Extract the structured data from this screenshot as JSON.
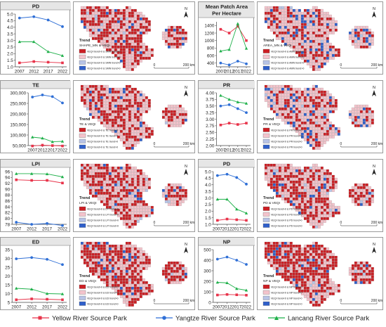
{
  "chart_data": [
    {
      "type": "line",
      "title": "PD",
      "categories": [
        "2007",
        "2012",
        "2017",
        "2022"
      ],
      "ylim": [
        1.0,
        5.0
      ],
      "yticks": [
        1.0,
        1.5,
        2.0,
        2.5,
        3.0,
        3.5,
        4.0,
        4.5,
        5.0
      ],
      "tick_labels": [
        "1.0",
        "1.5",
        "2.0",
        "2.5",
        "3.0",
        "3.5",
        "4.0",
        "4.5",
        "5.0"
      ],
      "series": [
        {
          "name": "Yellow River Source Park",
          "values": [
            1.3,
            1.4,
            1.35,
            1.3
          ]
        },
        {
          "name": "Yangtze River Source Park",
          "values": [
            4.7,
            4.8,
            4.55,
            4.05
          ]
        },
        {
          "name": "Lancang River Source Park",
          "values": [
            2.9,
            2.9,
            2.15,
            1.85
          ]
        }
      ]
    },
    {
      "type": "line",
      "title": "TE",
      "categories": [
        "2007",
        "2012",
        "2017",
        "2022"
      ],
      "ylim": [
        50000,
        300000
      ],
      "yticks": [
        50000,
        100000,
        150000,
        200000,
        250000,
        300000
      ],
      "tick_labels": [
        "50,000",
        "100,000",
        "150,000",
        "200,000",
        "250,000",
        "300,000"
      ],
      "series": [
        {
          "name": "Yellow River Source Park",
          "values": [
            48000,
            52000,
            50000,
            48000
          ]
        },
        {
          "name": "Yangtze River Source Park",
          "values": [
            280000,
            290000,
            282000,
            252000
          ]
        },
        {
          "name": "Lancang River Source Park",
          "values": [
            90000,
            85000,
            68000,
            70000
          ]
        }
      ]
    },
    {
      "type": "line",
      "title": "LPI",
      "categories": [
        "2007",
        "2012",
        "2017",
        "2022"
      ],
      "ylim": [
        78,
        96
      ],
      "yticks": [
        78,
        80,
        82,
        84,
        86,
        88,
        90,
        92,
        94,
        96
      ],
      "tick_labels": [
        "78",
        "80",
        "82",
        "84",
        "86",
        "88",
        "90",
        "92",
        "94",
        "96"
      ],
      "series": [
        {
          "name": "Yellow River Source Park",
          "values": [
            93.2,
            93.0,
            93.0,
            92.1
          ]
        },
        {
          "name": "Yangtze River Source Park",
          "values": [
            78.7,
            78.0,
            78.3,
            77.6
          ]
        },
        {
          "name": "Lancang River Source Park",
          "values": [
            95.3,
            95.3,
            95.2,
            94.2
          ]
        }
      ]
    },
    {
      "type": "line",
      "title": "ED",
      "categories": [
        "2007",
        "2012",
        "2017",
        "2022"
      ],
      "ylim": [
        5,
        35
      ],
      "yticks": [
        5,
        10,
        15,
        20,
        25,
        30,
        35
      ],
      "tick_labels": [
        "5",
        "10",
        "15",
        "20",
        "25",
        "30",
        "35"
      ],
      "series": [
        {
          "name": "Yellow River Source Park",
          "values": [
            6.5,
            7.0,
            6.8,
            6.5
          ]
        },
        {
          "name": "Yangtze River Source Park",
          "values": [
            29.8,
            30.5,
            29.5,
            26.5
          ]
        },
        {
          "name": "Lancang River Source Park",
          "values": [
            13.0,
            12.5,
            10.0,
            9.8
          ]
        }
      ]
    },
    {
      "type": "line",
      "title": "Mean Patch Area Per Hectare",
      "categories": [
        "2007",
        "2012",
        "2017",
        "2022"
      ],
      "ylim": [
        300,
        1500
      ],
      "yticks": [
        400,
        600,
        800,
        1000,
        1200,
        1400
      ],
      "tick_labels": [
        "400",
        "600",
        "800",
        "1000",
        "1200",
        "1400"
      ],
      "series": [
        {
          "name": "Yellow River Source Park",
          "values": [
            1300,
            1200,
            1380,
            1000
          ]
        },
        {
          "name": "Yangtze River Source Park",
          "values": [
            400,
            350,
            450,
            380
          ]
        },
        {
          "name": "Lancang River Source Park",
          "values": [
            720,
            760,
            1450,
            790
          ]
        }
      ]
    },
    {
      "type": "line",
      "title": "PR",
      "categories": [
        "2007",
        "2012",
        "2017",
        "2022"
      ],
      "ylim": [
        2.0,
        4.0
      ],
      "yticks": [
        2.0,
        2.25,
        2.5,
        2.75,
        3.0,
        3.25,
        3.5,
        3.75,
        4.0
      ],
      "tick_labels": [
        "2.00",
        "2.25",
        "2.50",
        "2.75",
        "3.00",
        "3.25",
        "3.50",
        "3.75",
        "4.00"
      ],
      "series": [
        {
          "name": "Yellow River Source Park",
          "values": [
            2.78,
            2.85,
            2.8,
            2.85
          ]
        },
        {
          "name": "Yangtze River Source Park",
          "values": [
            3.5,
            3.55,
            3.4,
            3.25
          ]
        },
        {
          "name": "Lancang River Source Park",
          "values": [
            3.9,
            3.75,
            3.65,
            3.6
          ]
        }
      ]
    },
    {
      "type": "line",
      "title": "PD",
      "categories": [
        "2007",
        "2012",
        "2017",
        "2022"
      ],
      "ylim": [
        1.0,
        5.0
      ],
      "yticks": [
        1.0,
        1.5,
        2.0,
        2.5,
        3.0,
        3.5,
        4.0,
        4.5,
        5.0
      ],
      "tick_labels": [
        "1.0",
        "1.5",
        "2.0",
        "2.5",
        "3.0",
        "3.5",
        "4.0",
        "4.5",
        "5.0"
      ],
      "series": [
        {
          "name": "Yellow River Source Park",
          "values": [
            1.3,
            1.4,
            1.35,
            1.3
          ]
        },
        {
          "name": "Yangtze River Source Park",
          "values": [
            4.7,
            4.8,
            4.55,
            4.05
          ]
        },
        {
          "name": "Lancang River Source Park",
          "values": [
            2.9,
            2.9,
            2.15,
            1.85
          ]
        }
      ]
    },
    {
      "type": "line",
      "title": "NP",
      "categories": [
        "2007",
        "2012",
        "2017",
        "2022"
      ],
      "ylim": [
        0,
        500
      ],
      "yticks": [
        0,
        100,
        200,
        300,
        400,
        500
      ],
      "tick_labels": [
        "0",
        "100",
        "200",
        "300",
        "400",
        "500"
      ],
      "series": [
        {
          "name": "Yellow River Source Park",
          "values": [
            70,
            75,
            72,
            68
          ]
        },
        {
          "name": "Yangtze River Source Park",
          "values": [
            410,
            430,
            400,
            360
          ]
        },
        {
          "name": "Lancang River Source Park",
          "values": [
            190,
            185,
            130,
            115
          ]
        }
      ]
    }
  ],
  "maps": [
    {
      "legend_title": "Trend",
      "legend_subtitle": "SHAPE_MN & VEQI",
      "items": [
        "VEQI trend>0 & SMN trend<0",
        "VEQI trend<0 & SMN trend<0",
        "VEQI trend<0 & SMN trend>0",
        "VEQI trend>0 & SMN trend>0"
      ]
    },
    {
      "legend_title": "Trend",
      "legend_subtitle": "TE & VEQI",
      "items": [
        "VEQI trend>0 & TE trend<0",
        "VEQI trend<0 & TE trend<0",
        "VEQI trend<0 & TE trend>0",
        "VEQI trend>0 & TE trend>0"
      ]
    },
    {
      "legend_title": "Trend",
      "legend_subtitle": "LPI & VEQI",
      "items": [
        "VEQI trend>0 & LPI trend<0",
        "VEQI trend<0 & LPI trend<0",
        "VEQI trend<0 & LPI trend>0",
        "VEQI trend>0 & LPI trend>0"
      ]
    },
    {
      "legend_title": "Trend",
      "legend_subtitle": "ED & VEQI",
      "items": [
        "VEQI trend>0 & ED trend<0",
        "VEQI trend<0 & ED trend<0",
        "VEQI trend<0 & ED trend>0",
        "VEQI trend>0 & ED trend>0"
      ]
    },
    {
      "legend_title": "Trend",
      "legend_subtitle": "AREA_MN & VEQI",
      "items": [
        "VEQI trend>0 & AMN trend<0",
        "VEQI trend<0 & AMN trend<0",
        "VEQI trend<0 & AMN trend>0",
        "VEQI trend>0 & AMN trend>0"
      ]
    },
    {
      "legend_title": "Trend",
      "legend_subtitle": "PR & VEQI",
      "items": [
        "VEQI trend>0 & PR trend<0",
        "VEQI trend<0 & PR trend<0",
        "VEQI trend<0 & PR trend>0",
        "VEQI trend>0 & PR trend>0"
      ]
    },
    {
      "legend_title": "Trend",
      "legend_subtitle": "PD & VEQI",
      "items": [
        "VEQI trend>0 & PD trend<0",
        "VEQI trend<0 & PD trend<0",
        "VEQI trend<0 & PD trend>0",
        "VEQI trend>0 & PD trend>0"
      ]
    },
    {
      "legend_title": "Trend",
      "legend_subtitle": "NP & VEQI",
      "items": [
        "VEQI trend>0 & NP trend<0",
        "VEQI trend<0 & NP trend<0",
        "VEQI trend<0 & NP trend>0",
        "VEQI trend>0 & NP trend>0"
      ]
    }
  ],
  "map_common": {
    "north": "N",
    "scale_start": "0",
    "scale_end": "200 km"
  },
  "legend": [
    {
      "name": "Yellow River Source Park",
      "color": "#e8334a",
      "marker": "square"
    },
    {
      "name": "Yangtze River Source Park",
      "color": "#2f6fd6",
      "marker": "circle"
    },
    {
      "name": "Lancang River Source Park",
      "color": "#1fb04a",
      "marker": "triangle"
    }
  ],
  "colors": {
    "red": "#cc1f24",
    "pink": "#f4c4cc",
    "blue": "#2f5fc9",
    "light_blue": "#b8c4e6"
  }
}
